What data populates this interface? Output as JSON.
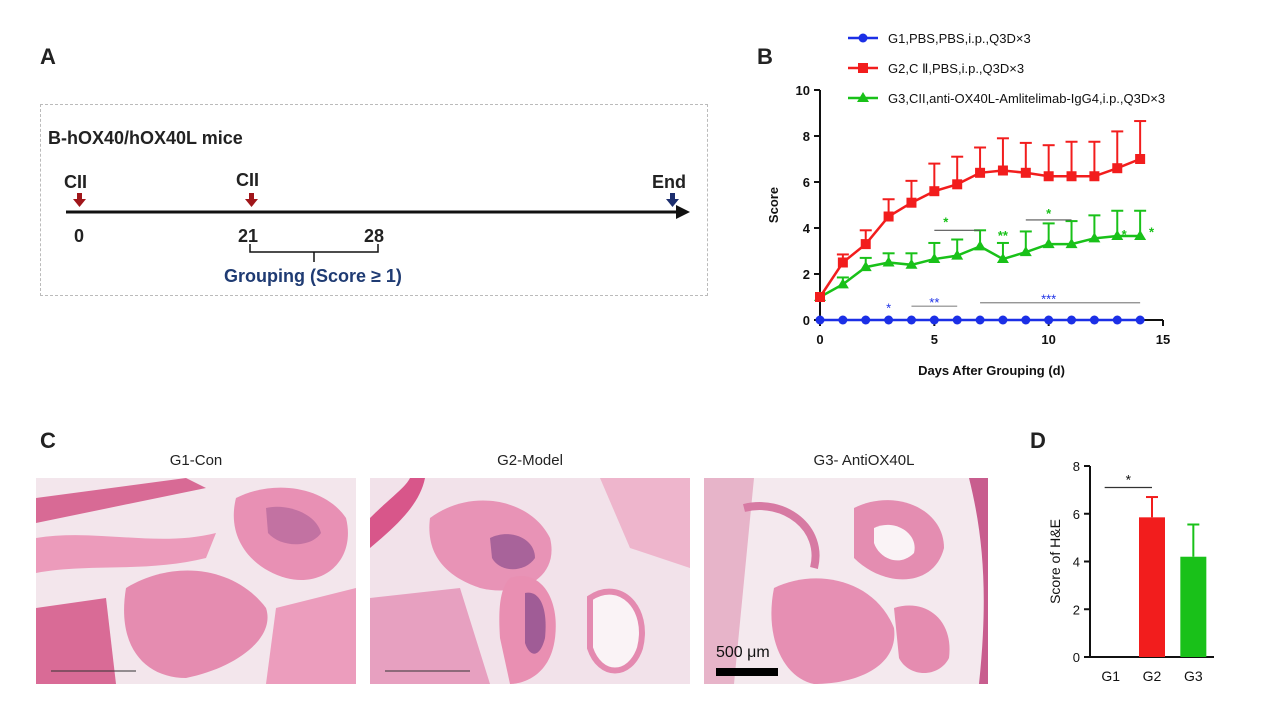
{
  "panels": {
    "a": "A",
    "b": "B",
    "c": "C",
    "d": "D"
  },
  "timeline": {
    "title": "B-hOX40/hOX40L mice",
    "events": [
      {
        "label": "CII",
        "day": "0"
      },
      {
        "label": "CII",
        "day": "21"
      }
    ],
    "day28": "28",
    "end_label": "End",
    "grouping": "Grouping (Score ≥ 1)"
  },
  "histology": {
    "titles": [
      "G1-Con",
      "G2-Model",
      "G3- AntiOX40L"
    ],
    "scale_bar": "500 μm"
  },
  "colors": {
    "g1": "#1b2fe6",
    "g2": "#f21d1d",
    "g3": "#19c119",
    "timeline_arrow_red": "#a0161a",
    "timeline_arrow_blue": "#1c2e6e"
  },
  "chart_data": [
    {
      "type": "line",
      "xlabel": "Days After Grouping (d)",
      "ylabel": "Score",
      "xlim": [
        0,
        15
      ],
      "ylim": [
        0,
        10
      ],
      "xticks": [
        0,
        5,
        10,
        15
      ],
      "yticks": [
        0,
        2,
        4,
        6,
        8,
        10
      ],
      "legend_position": "top",
      "x": [
        0,
        1,
        2,
        3,
        4,
        5,
        6,
        7,
        8,
        9,
        10,
        11,
        12,
        13,
        14
      ],
      "series": [
        {
          "name": "G1,PBS,PBS,i.p.,Q3D×3",
          "color": "#1b2fe6",
          "marker": "circle",
          "values": [
            0,
            0,
            0,
            0,
            0,
            0,
            0,
            0,
            0,
            0,
            0,
            0,
            0,
            0,
            0
          ],
          "errors": [
            0,
            0,
            0,
            0,
            0,
            0,
            0,
            0,
            0,
            0,
            0,
            0,
            0,
            0,
            0
          ]
        },
        {
          "name": "G2,C Ⅱ,PBS,i.p.,Q3D×3",
          "color": "#f21d1d",
          "marker": "square",
          "values": [
            1,
            2.5,
            3.3,
            4.5,
            5.1,
            5.6,
            5.9,
            6.4,
            6.5,
            6.4,
            6.25,
            6.25,
            6.25,
            6.6,
            7
          ],
          "errors": [
            0,
            0.35,
            0.6,
            0.75,
            0.95,
            1.2,
            1.2,
            1.1,
            1.4,
            1.3,
            1.35,
            1.5,
            1.5,
            1.6,
            1.65
          ]
        },
        {
          "name": "G3,CII,anti-OX40L-Amlitelimab-IgG4,i.p.,Q3D×3",
          "color": "#19c119",
          "marker": "triangle",
          "values": [
            1,
            1.55,
            2.3,
            2.5,
            2.4,
            2.65,
            2.8,
            3.2,
            2.65,
            2.95,
            3.3,
            3.3,
            3.55,
            3.65,
            3.65
          ],
          "errors": [
            0,
            0.3,
            0.4,
            0.4,
            0.5,
            0.7,
            0.7,
            0.7,
            0.7,
            0.9,
            0.9,
            1,
            1,
            1.1,
            1.1
          ]
        }
      ],
      "annotations": {
        "blue": [
          {
            "text": "*",
            "x": 3,
            "y": 0.5
          },
          {
            "text": "**",
            "x": 5,
            "y": 0.75,
            "bar": [
              4,
              6
            ],
            "bar_y": 0.6
          },
          {
            "text": "***",
            "x": 10,
            "y": 0.9,
            "bar": [
              7,
              14
            ],
            "bar_y": 0.75
          }
        ],
        "green": [
          {
            "text": "*",
            "x": 5.5,
            "y": 4.25,
            "bar": [
              5,
              7
            ],
            "bar_y": 3.9
          },
          {
            "text": "**",
            "x": 8,
            "y": 3.65
          },
          {
            "text": "*",
            "x": 10,
            "y": 4.6,
            "bar": [
              9,
              11
            ],
            "bar_y": 4.35
          },
          {
            "text": "*",
            "x": 13.3,
            "y": 3.7
          },
          {
            "text": "*",
            "x": 14.5,
            "y": 3.8
          }
        ]
      }
    },
    {
      "type": "bar",
      "ylabel": "Score of H&E",
      "xlabel": "",
      "ylim": [
        0,
        8
      ],
      "yticks": [
        0,
        2,
        4,
        6,
        8
      ],
      "categories": [
        "G1",
        "G2",
        "G3"
      ],
      "values": [
        0,
        5.85,
        4.2
      ],
      "errors": [
        0,
        0.85,
        1.35
      ],
      "colors": [
        "#1b2fe6",
        "#f21d1d",
        "#19c119"
      ],
      "significance": [
        {
          "text": "*",
          "from": 0,
          "to": 1,
          "y": 7.1
        }
      ]
    }
  ]
}
